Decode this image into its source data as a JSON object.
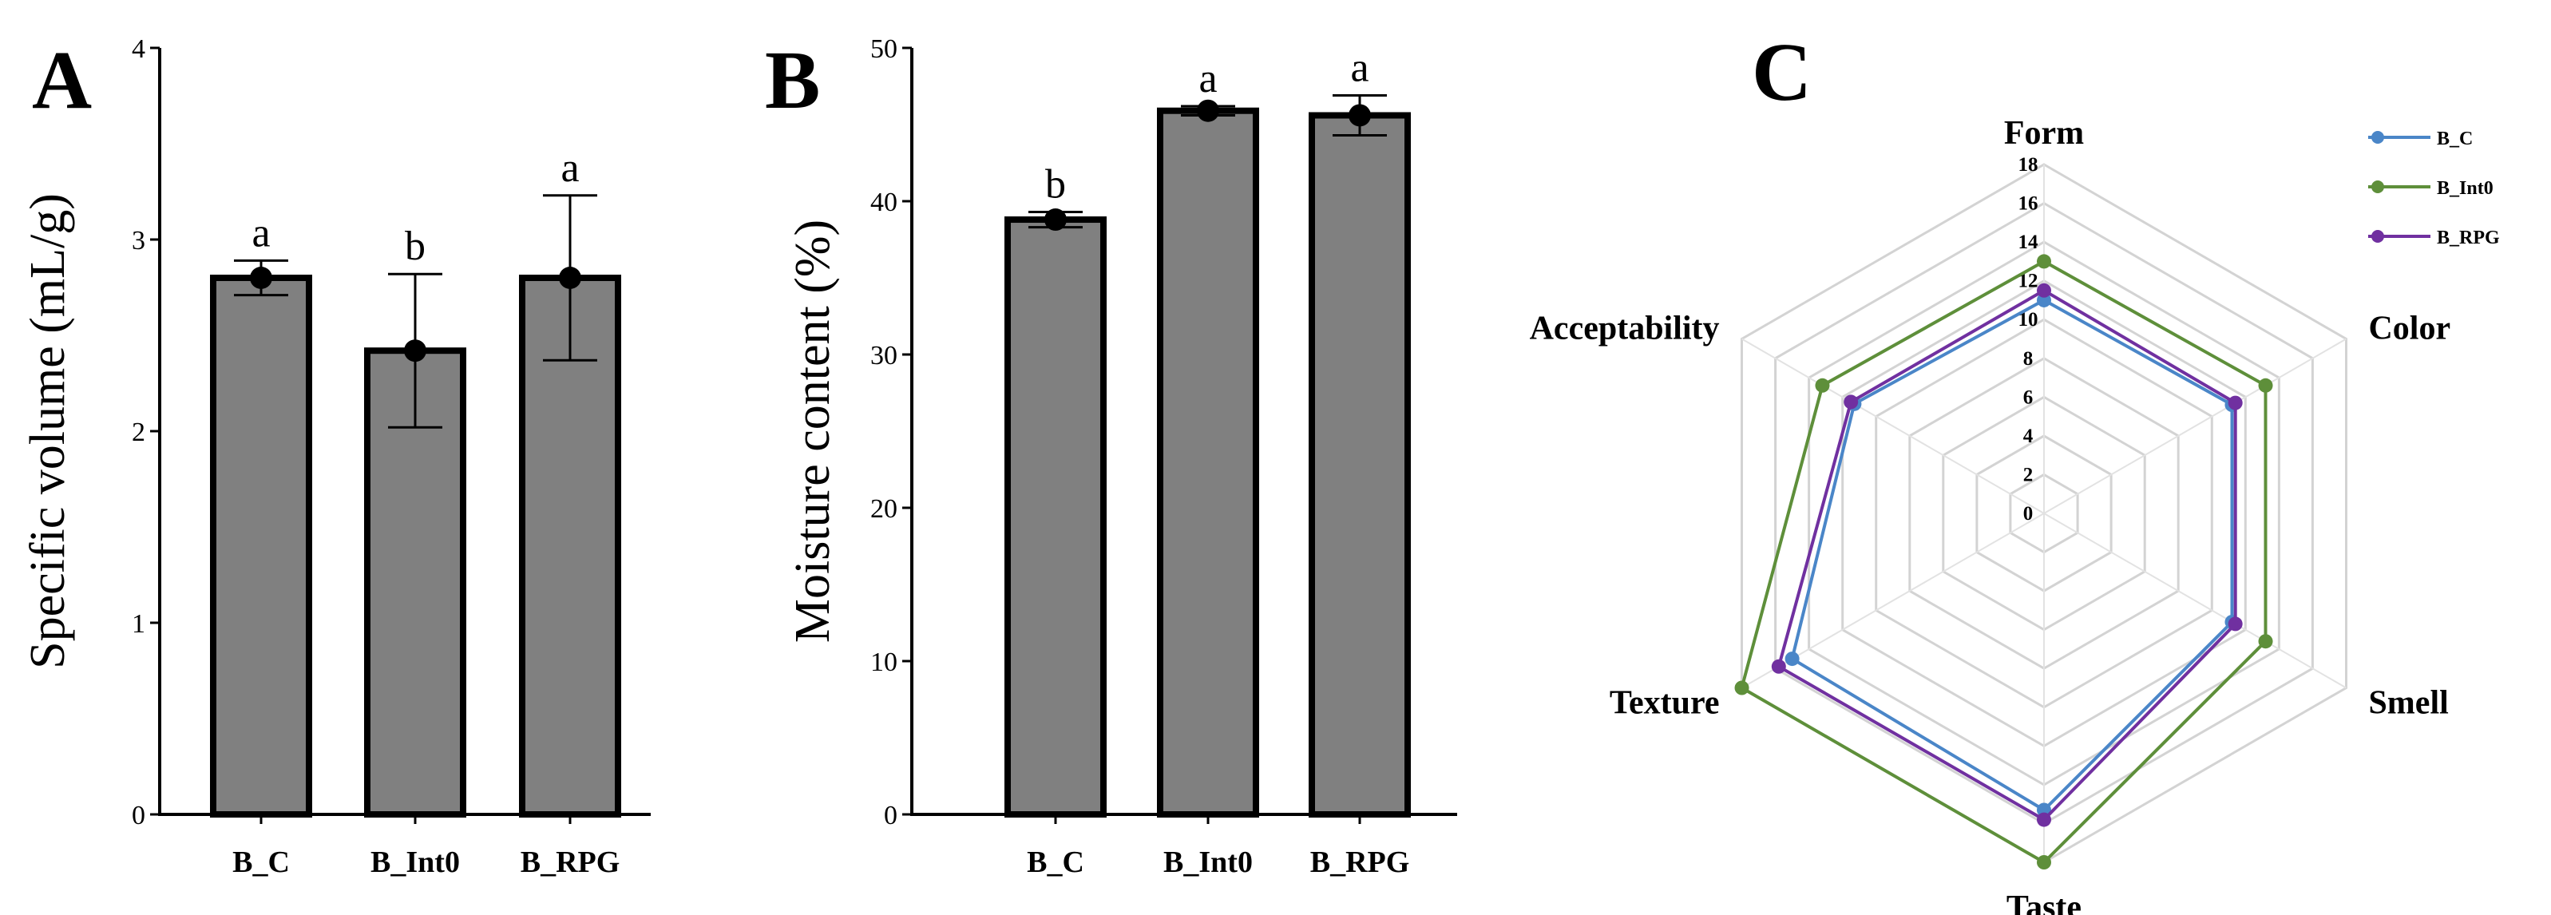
{
  "panels": {
    "A": {
      "letter": "A"
    },
    "B": {
      "letter": "B"
    },
    "C": {
      "letter": "C"
    }
  },
  "chart_data": [
    {
      "type": "bar",
      "panel": "A",
      "categories": [
        "B_C",
        "B_Int0",
        "B_RPG"
      ],
      "values": [
        2.8,
        2.42,
        2.8
      ],
      "error": [
        0.09,
        0.4,
        0.43
      ],
      "significance": [
        "a",
        "b",
        "a"
      ],
      "title": "",
      "xlabel": "",
      "ylabel": "Specific volume (mL/g)",
      "ylim": [
        0,
        4
      ],
      "yticks": [
        "0",
        "1",
        "2",
        "3",
        "4"
      ],
      "bar_color": "#808080",
      "grid": false
    },
    {
      "type": "bar",
      "panel": "B",
      "categories": [
        "B_C",
        "B_Int0",
        "B_RPG"
      ],
      "values": [
        38.8,
        45.9,
        45.6
      ],
      "error": [
        0.5,
        0.3,
        1.3
      ],
      "significance": [
        "b",
        "a",
        "a"
      ],
      "title": "",
      "xlabel": "",
      "ylabel": "Moisture content (%)",
      "ylim": [
        0,
        50
      ],
      "yticks": [
        "0",
        "10",
        "20",
        "30",
        "40",
        "50"
      ],
      "bar_color": "#808080",
      "grid": false
    },
    {
      "type": "radar",
      "panel": "C",
      "axes": [
        "Form",
        "Color",
        "Smell",
        "Taste",
        "Texture",
        "Acceptability"
      ],
      "rlim": [
        0,
        18
      ],
      "rticks": [
        "0",
        "2",
        "4",
        "6",
        "8",
        "10",
        "12",
        "14",
        "16",
        "18"
      ],
      "series": [
        {
          "name": "B_C",
          "color": "#4a86c8",
          "values": [
            11.0,
            11.2,
            11.2,
            15.3,
            15.0,
            11.3
          ]
        },
        {
          "name": "B_Int0",
          "color": "#5e8f3a",
          "values": [
            13.0,
            13.2,
            13.2,
            18.0,
            18.0,
            13.2
          ]
        },
        {
          "name": "B_RPG",
          "color": "#7030a0",
          "values": [
            11.5,
            11.4,
            11.4,
            15.8,
            15.8,
            11.5
          ]
        }
      ],
      "legend_position": "top-right",
      "grid": true
    }
  ]
}
